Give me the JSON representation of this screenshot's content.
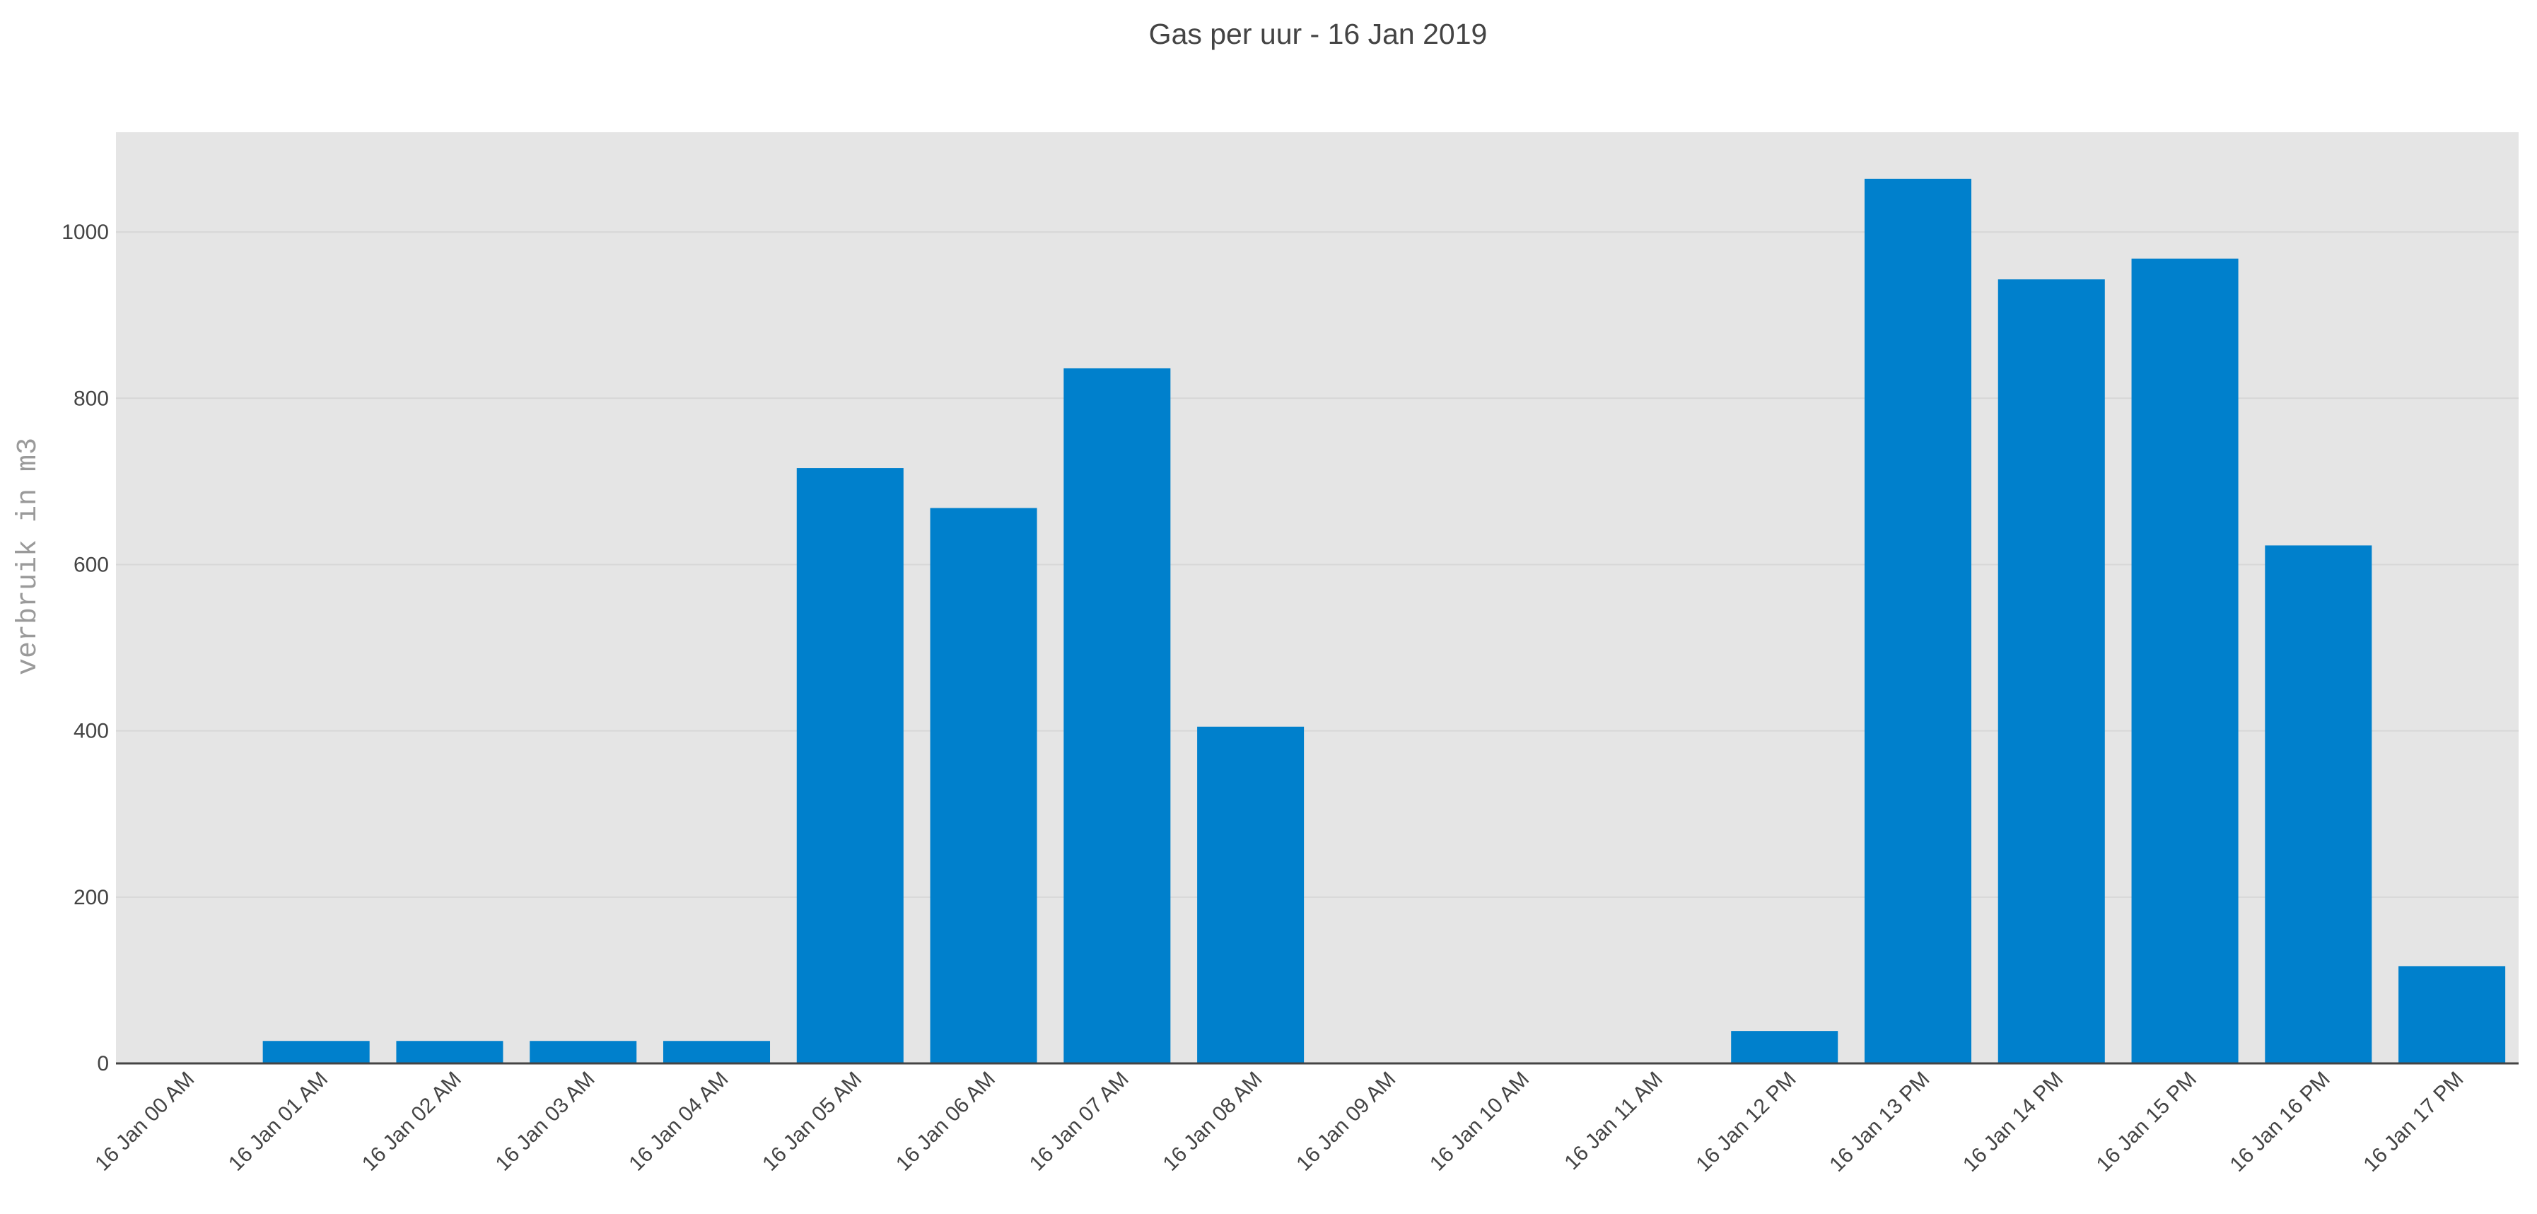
{
  "chart_data": {
    "type": "bar",
    "title": "Gas per uur - 16 Jan 2019",
    "xlabel": "",
    "ylabel": "verbruik in m3",
    "categories": [
      "16 Jan 00 AM",
      "16 Jan 01 AM",
      "16 Jan 02 AM",
      "16 Jan 03 AM",
      "16 Jan 04 AM",
      "16 Jan 05 AM",
      "16 Jan 06 AM",
      "16 Jan 07 AM",
      "16 Jan 08 AM",
      "16 Jan 09 AM",
      "16 Jan 10 AM",
      "16 Jan 11 AM",
      "16 Jan 12 PM",
      "16 Jan 13 PM",
      "16 Jan 14 PM",
      "16 Jan 15 PM",
      "16 Jan 16 PM",
      "16 Jan 17 PM"
    ],
    "values": [
      0,
      27,
      27,
      27,
      27,
      716,
      668,
      836,
      405,
      0,
      0,
      0,
      39,
      1064,
      943,
      968,
      623,
      117
    ],
    "ylim": [
      0,
      1120
    ],
    "yticks": [
      0,
      200,
      400,
      600,
      800,
      1000
    ],
    "grid": true,
    "legend": "none",
    "colors": {
      "bar": "#0080cc",
      "plot_background": "#e5e5e5",
      "gridline": "#d7d7d7",
      "axis_line": "#444444"
    }
  }
}
